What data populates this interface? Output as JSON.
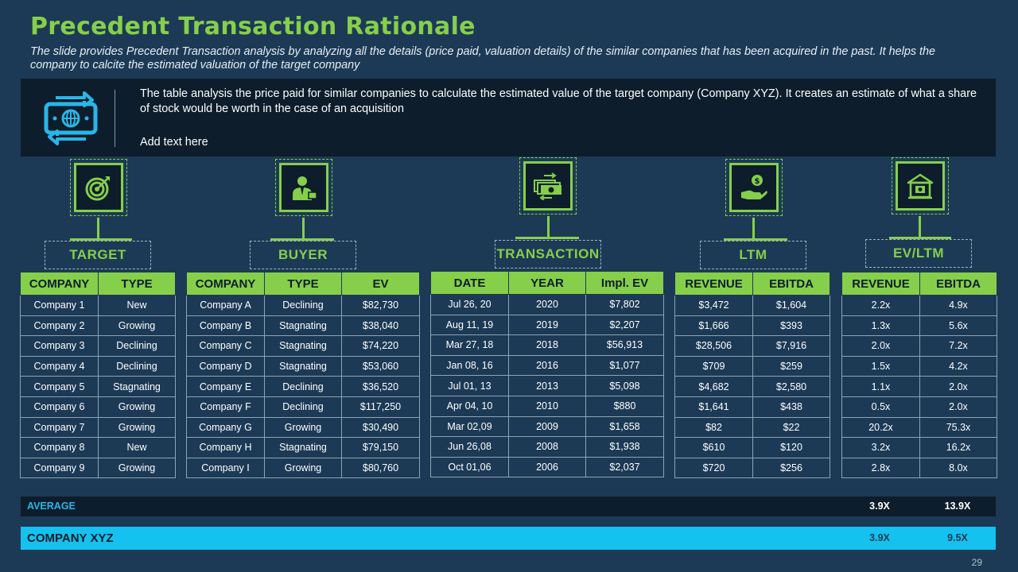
{
  "header": {
    "title": "Precedent Transaction Rationale",
    "subtitle": "The slide provides Precedent Transaction analysis by analyzing all the details (price paid, valuation details) of the similar companies that has been acquired in the past. It helps the company to calcite the estimated valuation of the target company"
  },
  "info": {
    "text": "The table analysis the price paid for similar companies to calculate the estimated value of the target company (Company XYZ). It creates an estimate of what a share of stock would be worth in the case of an acquisition",
    "add_text": "Add text here",
    "icon": "money-exchange-icon"
  },
  "categories": [
    {
      "label": "TARGET",
      "icon": "target-icon"
    },
    {
      "label": "BUYER",
      "icon": "businessman-icon"
    },
    {
      "label": "TRANSACTION",
      "icon": "cash-transfer-icon"
    },
    {
      "label": "LTM",
      "icon": "hand-dollar-icon"
    },
    {
      "label": "EV/LTM",
      "icon": "bank-icon"
    }
  ],
  "target": {
    "headers": [
      "COMPANY",
      "TYPE"
    ],
    "rows": [
      [
        "Company 1",
        "New"
      ],
      [
        "Company 2",
        "Growing"
      ],
      [
        "Company 3",
        "Declining"
      ],
      [
        "Company 4",
        "Declining"
      ],
      [
        "Company 5",
        "Stagnating"
      ],
      [
        "Company 6",
        "Growing"
      ],
      [
        "Company 7",
        "Growing"
      ],
      [
        "Company 8",
        "New"
      ],
      [
        "Company 9",
        "Growing"
      ]
    ]
  },
  "buyer": {
    "headers": [
      "COMPANY",
      "TYPE",
      "EV"
    ],
    "rows": [
      [
        "Company A",
        "Declining",
        "$82,730"
      ],
      [
        "Company B",
        "Stagnating",
        "$38,040"
      ],
      [
        "Company C",
        "Stagnating",
        "$74,220"
      ],
      [
        "Company D",
        "Stagnating",
        "$53,060"
      ],
      [
        "Company E",
        "Declining",
        "$36,520"
      ],
      [
        "Company F",
        "Declining",
        "$117,250"
      ],
      [
        "Company G",
        "Growing",
        "$30,490"
      ],
      [
        "Company H",
        "Stagnating",
        "$79,150"
      ],
      [
        "Company I",
        "Growing",
        "$80,760"
      ]
    ]
  },
  "transaction": {
    "headers": [
      "DATE",
      "YEAR",
      "Impl. EV"
    ],
    "rows": [
      [
        "Jul 26, 20",
        "2020",
        "$7,802"
      ],
      [
        "Aug 11, 19",
        "2019",
        "$2,207"
      ],
      [
        "Mar 27, 18",
        "2018",
        "$56,913"
      ],
      [
        "Jan 08, 16",
        "2016",
        "$1,077"
      ],
      [
        "Jul 01, 13",
        "2013",
        "$5,098"
      ],
      [
        "Apr 04, 10",
        "2010",
        "$880"
      ],
      [
        "Mar 02,09",
        "2009",
        "$1,658"
      ],
      [
        "Jun 26,08",
        "2008",
        "$1,938"
      ],
      [
        "Oct 01,06",
        "2006",
        "$2,037"
      ]
    ]
  },
  "ltm": {
    "headers": [
      "REVENUE",
      "EBITDA"
    ],
    "rows": [
      [
        "$3,472",
        "$1,604"
      ],
      [
        "$1,666",
        "$393"
      ],
      [
        "$28,506",
        "$7,916"
      ],
      [
        "$709",
        "$259"
      ],
      [
        "$4,682",
        "$2,580"
      ],
      [
        "$1,641",
        "$438"
      ],
      [
        "$82",
        "$22"
      ],
      [
        "$610",
        "$120"
      ],
      [
        "$720",
        "$256"
      ]
    ]
  },
  "ev_ltm": {
    "headers": [
      "REVENUE",
      "EBITDA"
    ],
    "rows": [
      [
        "2.2x",
        "4.9x"
      ],
      [
        "1.3x",
        "5.6x"
      ],
      [
        "2.0x",
        "7.2x"
      ],
      [
        "1.5x",
        "4.2x"
      ],
      [
        "1.1x",
        "2.0x"
      ],
      [
        "0.5x",
        "2.0x"
      ],
      [
        "20.2x",
        "75.3x"
      ],
      [
        "3.2x",
        "16.2x"
      ],
      [
        "2.8x",
        "8.0x"
      ]
    ]
  },
  "average": {
    "label": "AVERAGE",
    "revenue": "3.9X",
    "ebitda": "13.9X"
  },
  "company_xyz": {
    "label": "COMPANY XYZ",
    "revenue": "3.9X",
    "ebitda": "9.5X"
  },
  "colors": {
    "accent": "#86cf4b",
    "background": "#1c3a55",
    "dark": "#0d1d2b",
    "highlight": "#15c1ee",
    "average_label": "#29b6e8"
  },
  "page_number": "29"
}
